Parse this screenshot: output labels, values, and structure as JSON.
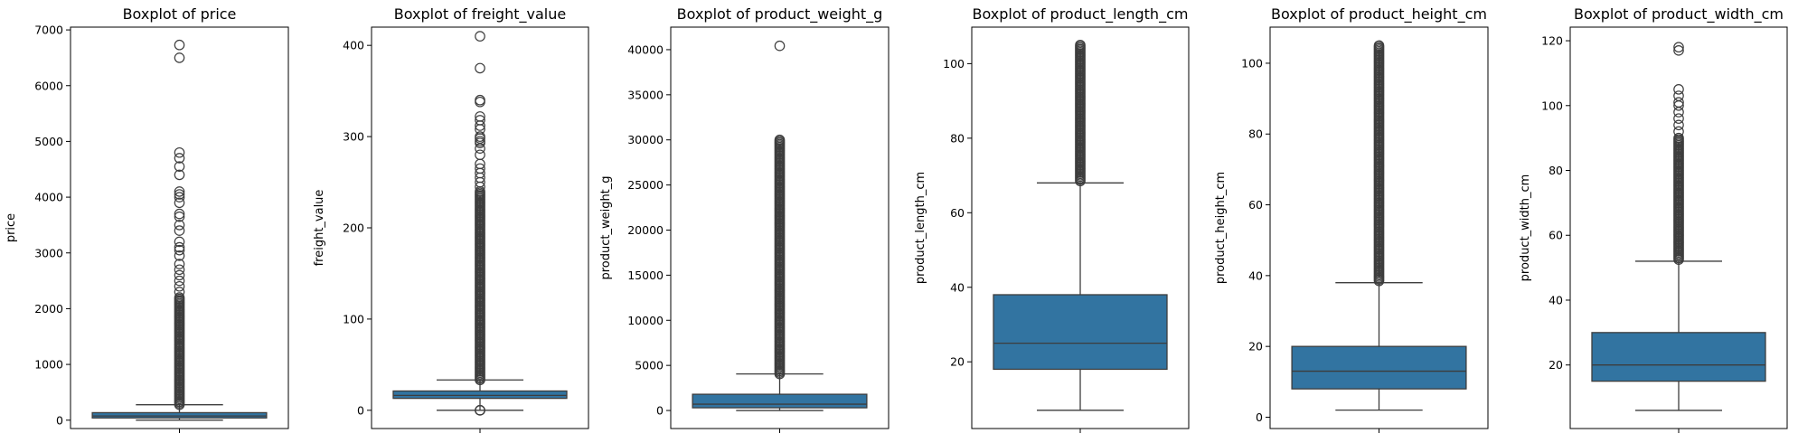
{
  "chart_data": [
    {
      "type": "boxplot",
      "title": "Boxplot of price",
      "xlabel": "",
      "ylabel": "price",
      "ylim": [
        -150,
        7050
      ],
      "yticks": [
        0,
        1000,
        2000,
        3000,
        4000,
        5000,
        6000,
        7000
      ],
      "box": {
        "min": 0.85,
        "q1": 39.9,
        "median": 74.9,
        "q3": 134.9,
        "whisker_high": 277
      },
      "outlier_band": [
        277,
        2200
      ],
      "outliers": [
        2300,
        2400,
        2500,
        2600,
        2700,
        2800,
        2950,
        3050,
        3100,
        3200,
        3400,
        3500,
        3650,
        3700,
        3900,
        4000,
        4050,
        4100,
        4400,
        4550,
        4700,
        4800,
        6500,
        6730
      ],
      "color": "#3274a1"
    },
    {
      "type": "boxplot",
      "title": "Boxplot of freight_value",
      "xlabel": "",
      "ylabel": "freight_value",
      "ylim": [
        -20,
        420
      ],
      "yticks": [
        0,
        100,
        200,
        300,
        400
      ],
      "box": {
        "min": 0,
        "q1": 13.08,
        "median": 16.26,
        "q3": 21.15,
        "whisker_high": 33.25
      },
      "outlier_band": [
        33.25,
        240
      ],
      "outlier_low": [
        0,
        0,
        0
      ],
      "outliers": [
        245,
        250,
        255,
        260,
        265,
        270,
        280,
        287,
        293,
        295,
        298,
        300,
        308,
        312,
        318,
        322,
        338,
        340,
        375,
        410
      ],
      "color": "#3274a1"
    },
    {
      "type": "boxplot",
      "title": "Boxplot of product_weight_g",
      "xlabel": "",
      "ylabel": "product_weight_g",
      "ylim": [
        -2000,
        42500
      ],
      "yticks": [
        0,
        5000,
        10000,
        15000,
        20000,
        25000,
        30000,
        35000,
        40000
      ],
      "box": {
        "min": 0,
        "q1": 300,
        "median": 700,
        "q3": 1800,
        "whisker_high": 4050
      },
      "outlier_band": [
        4050,
        30000
      ],
      "outliers": [
        40425
      ],
      "color": "#3274a1"
    },
    {
      "type": "boxplot",
      "title": "Boxplot of product_length_cm",
      "xlabel": "",
      "ylabel": "product_length_cm",
      "ylim": [
        2.1,
        109.8
      ],
      "yticks": [
        20,
        40,
        60,
        80,
        100
      ],
      "box": {
        "min": 7,
        "q1": 18,
        "median": 25,
        "q3": 38,
        "whisker_high": 68
      },
      "outlier_band": [
        68.5,
        105
      ],
      "outliers": [],
      "color": "#3274a1"
    },
    {
      "type": "boxplot",
      "title": "Boxplot of product_height_cm",
      "xlabel": "",
      "ylabel": "product_height_cm",
      "ylim": [
        -3.2,
        110.2
      ],
      "yticks": [
        0,
        20,
        40,
        60,
        80,
        100
      ],
      "box": {
        "min": 2,
        "q1": 8,
        "median": 13,
        "q3": 20,
        "whisker_high": 38
      },
      "outlier_band": [
        38.5,
        105
      ],
      "outliers": [],
      "color": "#3274a1"
    },
    {
      "type": "boxplot",
      "title": "Boxplot of product_width_cm",
      "xlabel": "",
      "ylabel": "product_width_cm",
      "ylim": [
        0.4,
        124.2
      ],
      "yticks": [
        20,
        40,
        60,
        80,
        100,
        120
      ],
      "box": {
        "min": 6,
        "q1": 15,
        "median": 20,
        "q3": 30,
        "whisker_high": 52
      },
      "outlier_band": [
        52.5,
        90
      ],
      "outliers": [
        92,
        94,
        96,
        98,
        100,
        101,
        103,
        105,
        117,
        118
      ],
      "color": "#3274a1"
    }
  ]
}
